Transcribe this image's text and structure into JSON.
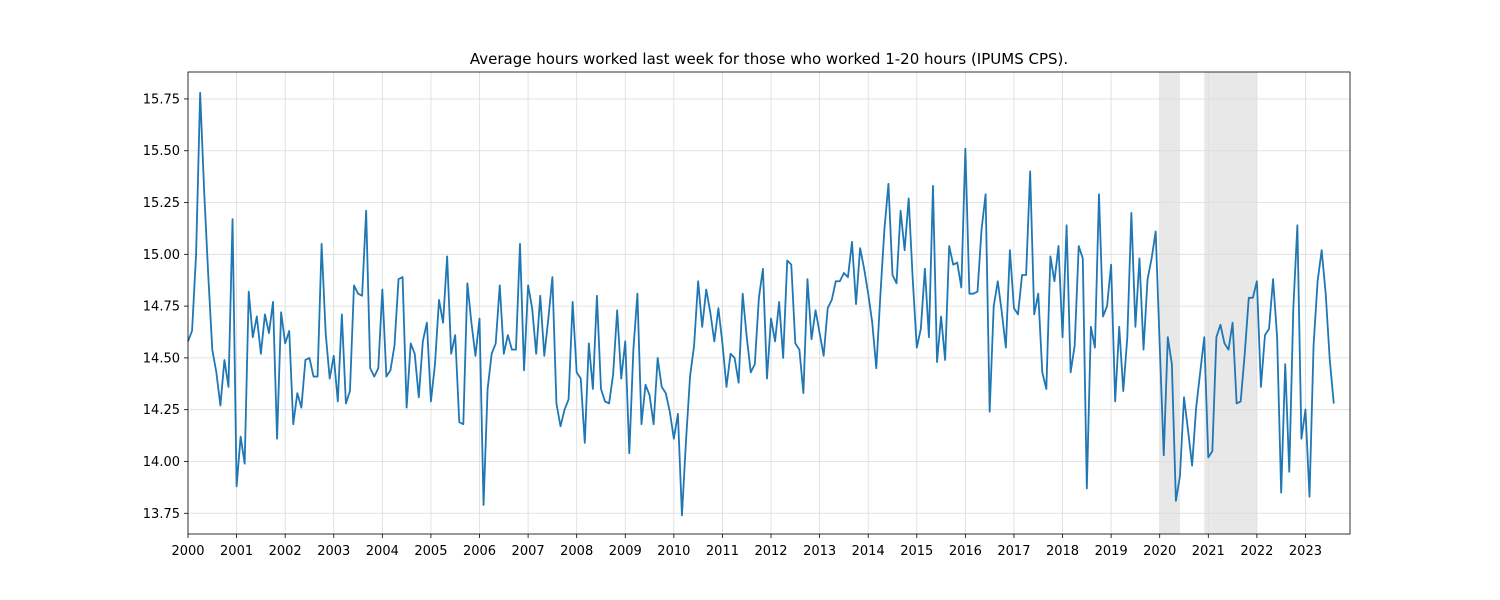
{
  "chart_data": {
    "type": "line",
    "title": "Average hours worked last week for those who worked 1-20 hours (IPUMS CPS).",
    "xlabel": "",
    "ylabel": "",
    "xlim": [
      "2000-01",
      "2023-12"
    ],
    "ylim": [
      13.65,
      15.88
    ],
    "grid": true,
    "line_color": "#1f77b4",
    "shade_color": "#d9d9d9",
    "x_ticks": [
      {
        "date": "2000-01",
        "label": "2000"
      },
      {
        "date": "2001-01",
        "label": "2001"
      },
      {
        "date": "2002-01",
        "label": "2002"
      },
      {
        "date": "2003-01",
        "label": "2003"
      },
      {
        "date": "2004-01",
        "label": "2004"
      },
      {
        "date": "2005-01",
        "label": "2005"
      },
      {
        "date": "2006-01",
        "label": "2006"
      },
      {
        "date": "2007-01",
        "label": "2007"
      },
      {
        "date": "2008-01",
        "label": "2008"
      },
      {
        "date": "2009-01",
        "label": "2009"
      },
      {
        "date": "2010-01",
        "label": "2010"
      },
      {
        "date": "2011-01",
        "label": "2011"
      },
      {
        "date": "2012-01",
        "label": "2012"
      },
      {
        "date": "2013-01",
        "label": "2013"
      },
      {
        "date": "2014-01",
        "label": "2014"
      },
      {
        "date": "2015-01",
        "label": "2015"
      },
      {
        "date": "2016-01",
        "label": "2016"
      },
      {
        "date": "2017-01",
        "label": "2017"
      },
      {
        "date": "2018-01",
        "label": "2018"
      },
      {
        "date": "2019-01",
        "label": "2019"
      },
      {
        "date": "2020-01",
        "label": "2020"
      },
      {
        "date": "2021-01",
        "label": "2021"
      },
      {
        "date": "2022-01",
        "label": "2022"
      },
      {
        "date": "2023-01",
        "label": "2023"
      }
    ],
    "y_ticks": [
      {
        "value": 13.75,
        "label": "13.75"
      },
      {
        "value": 14.0,
        "label": "14.00"
      },
      {
        "value": 14.25,
        "label": "14.25"
      },
      {
        "value": 14.5,
        "label": "14.50"
      },
      {
        "value": 14.75,
        "label": "14.75"
      },
      {
        "value": 15.0,
        "label": "15.00"
      },
      {
        "value": 15.25,
        "label": "15.25"
      },
      {
        "value": 15.5,
        "label": "15.50"
      },
      {
        "value": 15.75,
        "label": "15.75"
      }
    ],
    "shaded_periods": [
      {
        "start": "2020-01",
        "end": "2020-06"
      },
      {
        "start": "2020-12",
        "end": "2022-01"
      }
    ],
    "series": [
      {
        "start": "2000-01",
        "frequency": "monthly",
        "values": [
          14.58,
          14.63,
          15.0,
          15.78,
          15.3,
          14.9,
          14.54,
          14.43,
          14.27,
          14.49,
          14.36,
          15.17,
          13.88,
          14.12,
          13.99,
          14.82,
          14.6,
          14.7,
          14.52,
          14.71,
          14.62,
          14.77,
          14.11,
          14.72,
          14.57,
          14.63,
          14.18,
          14.33,
          14.26,
          14.49,
          14.5,
          14.41,
          14.41,
          15.05,
          14.62,
          14.4,
          14.51,
          14.29,
          14.71,
          14.28,
          14.34,
          14.85,
          14.81,
          14.8,
          15.21,
          14.45,
          14.41,
          14.45,
          14.83,
          14.41,
          14.44,
          14.56,
          14.88,
          14.89,
          14.26,
          14.57,
          14.52,
          14.31,
          14.58,
          14.67,
          14.29,
          14.47,
          14.78,
          14.67,
          14.99,
          14.52,
          14.61,
          14.19,
          14.18,
          14.86,
          14.67,
          14.51,
          14.69,
          13.79,
          14.35,
          14.52,
          14.57,
          14.85,
          14.52,
          14.61,
          14.54,
          14.54,
          15.05,
          14.44,
          14.85,
          14.74,
          14.52,
          14.8,
          14.51,
          14.69,
          14.89,
          14.28,
          14.17,
          14.25,
          14.3,
          14.77,
          14.43,
          14.4,
          14.09,
          14.57,
          14.35,
          14.8,
          14.35,
          14.29,
          14.28,
          14.42,
          14.73,
          14.4,
          14.58,
          14.04,
          14.54,
          14.81,
          14.18,
          14.37,
          14.32,
          14.18,
          14.5,
          14.36,
          14.33,
          14.24,
          14.11,
          14.23,
          13.74,
          14.1,
          14.41,
          14.56,
          14.87,
          14.65,
          14.83,
          14.72,
          14.58,
          14.74,
          14.57,
          14.36,
          14.52,
          14.5,
          14.38,
          14.81,
          14.6,
          14.43,
          14.47,
          14.79,
          14.93,
          14.4,
          14.69,
          14.58,
          14.77,
          14.5,
          14.97,
          14.95,
          14.57,
          14.54,
          14.33,
          14.88,
          14.59,
          14.73,
          14.62,
          14.51,
          14.74,
          14.78,
          14.87,
          14.87,
          14.91,
          14.89,
          15.06,
          14.76,
          15.03,
          14.93,
          14.81,
          14.67,
          14.45,
          14.8,
          15.12,
          15.34,
          14.9,
          14.86,
          15.21,
          15.02,
          15.27,
          14.88,
          14.55,
          14.64,
          14.93,
          14.6,
          15.33,
          14.48,
          14.7,
          14.49,
          15.04,
          14.95,
          14.96,
          14.84,
          15.51,
          14.81,
          14.81,
          14.82,
          15.12,
          15.29,
          14.24,
          14.75,
          14.87,
          14.72,
          14.55,
          15.02,
          14.74,
          14.71,
          14.9,
          14.9,
          15.4,
          14.71,
          14.81,
          14.43,
          14.35,
          14.99,
          14.87,
          15.04,
          14.6,
          15.14,
          14.43,
          14.56,
          15.04,
          14.98,
          13.87,
          14.65,
          14.55,
          15.29,
          14.7,
          14.75,
          14.95,
          14.29,
          14.65,
          14.34,
          14.6,
          15.2,
          14.65,
          14.98,
          14.54,
          14.88,
          14.98,
          15.11,
          14.56,
          14.03,
          14.6,
          14.47,
          13.81,
          13.93,
          14.31,
          14.15,
          13.98,
          14.26,
          14.43,
          14.6,
          14.02,
          14.05,
          14.6,
          14.66,
          14.57,
          14.54,
          14.67,
          14.28,
          14.29,
          14.52,
          14.79,
          14.79,
          14.87,
          14.36,
          14.61,
          14.64,
          14.88,
          14.6,
          13.85,
          14.47,
          13.95,
          14.74,
          15.14,
          14.11,
          14.25,
          13.83,
          14.56,
          14.87,
          15.02,
          14.81,
          14.49,
          14.28
        ]
      }
    ]
  }
}
